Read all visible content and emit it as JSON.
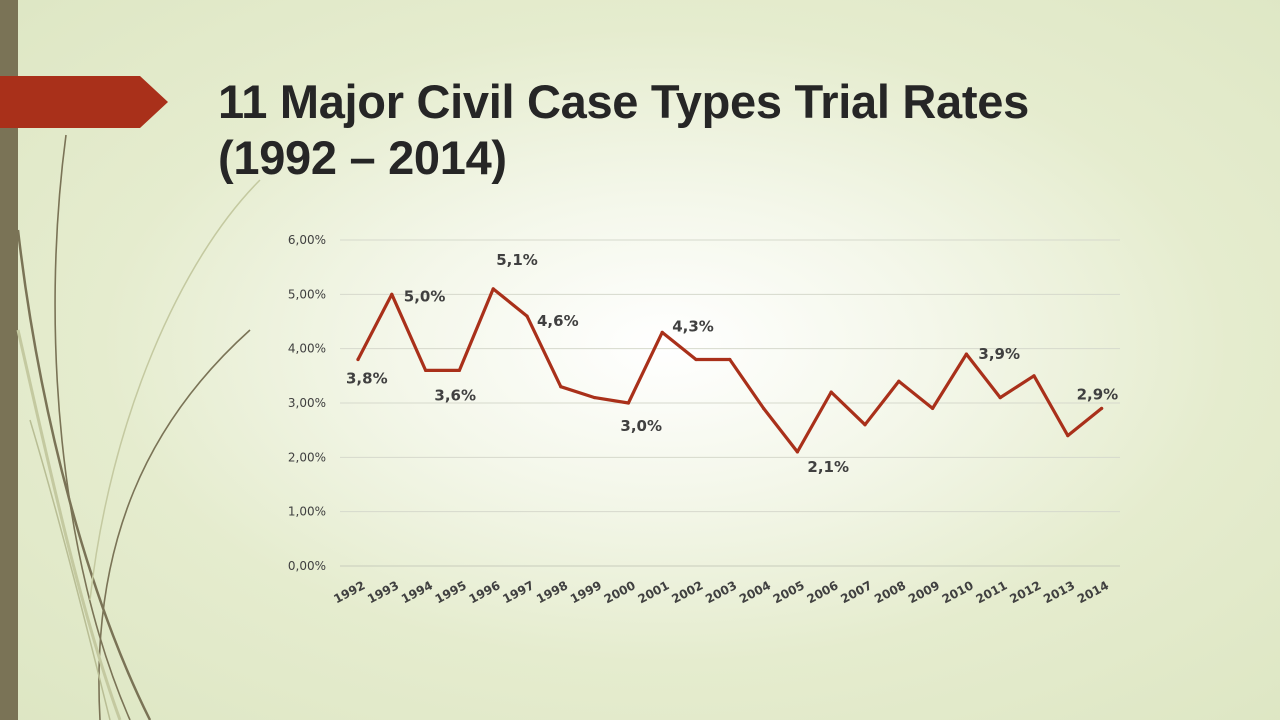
{
  "slide": {
    "title_line1": "11 Major Civil Case Types Trial Rates",
    "title_line2": "(1992 – 2014)",
    "accent_color": "#a9301a",
    "sidebar_color": "#7a7356"
  },
  "chart_data": {
    "type": "line",
    "title": "",
    "xlabel": "",
    "ylabel": "",
    "categories": [
      "1992",
      "1993",
      "1994",
      "1995",
      "1996",
      "1997",
      "1998",
      "1999",
      "2000",
      "2001",
      "2002",
      "2003",
      "2004",
      "2005",
      "2006",
      "2007",
      "2008",
      "2009",
      "2010",
      "2011",
      "2012",
      "2013",
      "2014"
    ],
    "series": [
      {
        "values": [
          3.8,
          5.0,
          3.6,
          3.6,
          5.1,
          4.6,
          3.3,
          3.1,
          3.0,
          4.3,
          3.8,
          3.8,
          2.9,
          2.1,
          3.2,
          2.6,
          3.4,
          2.9,
          3.9,
          3.1,
          3.5,
          2.4,
          2.9
        ],
        "color": "#a9301a"
      }
    ],
    "ylim": [
      0,
      6
    ],
    "y_ticks": [
      "0,00%",
      "1,00%",
      "2,00%",
      "3,00%",
      "4,00%",
      "5,00%",
      "6,00%"
    ],
    "data_labels": [
      {
        "index": 0,
        "text": "3,8%"
      },
      {
        "index": 1,
        "text": "5,0%"
      },
      {
        "index": 3,
        "text": "3,6%"
      },
      {
        "index": 4,
        "text": "5,1%"
      },
      {
        "index": 5,
        "text": "4,6%"
      },
      {
        "index": 8,
        "text": "3,0%"
      },
      {
        "index": 9,
        "text": "4,3%"
      },
      {
        "index": 13,
        "text": "2,1%"
      },
      {
        "index": 18,
        "text": "3,9%"
      },
      {
        "index": 22,
        "text": "2,9%"
      }
    ],
    "grid": true,
    "legend": "none"
  }
}
